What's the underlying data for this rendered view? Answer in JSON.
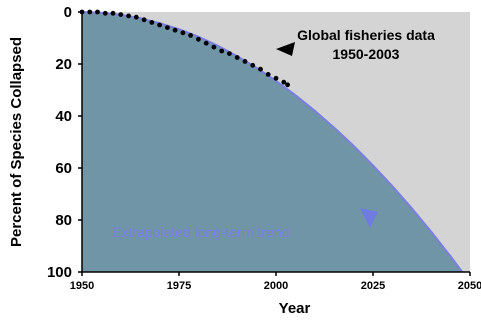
{
  "chart_data": {
    "type": "line",
    "xlabel": "Year",
    "ylabel": "Percent of Species Collapsed",
    "xlim": [
      1950,
      2050
    ],
    "ylim": [
      0,
      100
    ],
    "y_inverted": true,
    "x_ticks": [
      "1950",
      "1975",
      "2000",
      "2025",
      "2050"
    ],
    "y_ticks": [
      "0",
      "20",
      "40",
      "60",
      "80",
      "100"
    ],
    "grid": false,
    "colors": {
      "plot_background": "#d4d4d4",
      "trend_fill": "#6f95a6",
      "trend_line": "#7b7fe0",
      "data_points": "#000000"
    },
    "series": [
      {
        "name": "Global fisheries data 1950-2003",
        "kind": "scatter",
        "x": [
          1950,
          1952,
          1954,
          1956,
          1958,
          1960,
          1962,
          1964,
          1966,
          1968,
          1970,
          1972,
          1974,
          1976,
          1978,
          1980,
          1982,
          1984,
          1986,
          1988,
          1990,
          1992,
          1994,
          1996,
          1998,
          2000,
          2002,
          2003
        ],
        "y": [
          0,
          0,
          0,
          0.5,
          0.5,
          1,
          1.5,
          2,
          3,
          4,
          5,
          6,
          7,
          8,
          9,
          10.5,
          12,
          13.5,
          15,
          16,
          17.5,
          19,
          20.5,
          22,
          24,
          25.5,
          27,
          28
        ]
      },
      {
        "name": "Extrapolated long-term trend",
        "kind": "area",
        "x": [
          1950,
          1955,
          1960,
          1965,
          1970,
          1975,
          1980,
          1985,
          1990,
          1995,
          2000,
          2005,
          2010,
          2015,
          2020,
          2025,
          2030,
          2035,
          2040,
          2045,
          2048
        ],
        "y": [
          0,
          0.3,
          1.1,
          2.4,
          4.3,
          6.6,
          9.5,
          13,
          17,
          21.5,
          26.5,
          32,
          38,
          44.5,
          51.5,
          59,
          67,
          75.5,
          84.5,
          94,
          100
        ]
      }
    ],
    "annotations": [
      {
        "text_lines": [
          "Global fisheries data",
          "1950-2003"
        ]
      },
      {
        "text": "Extrapolated long-term trend"
      }
    ]
  }
}
